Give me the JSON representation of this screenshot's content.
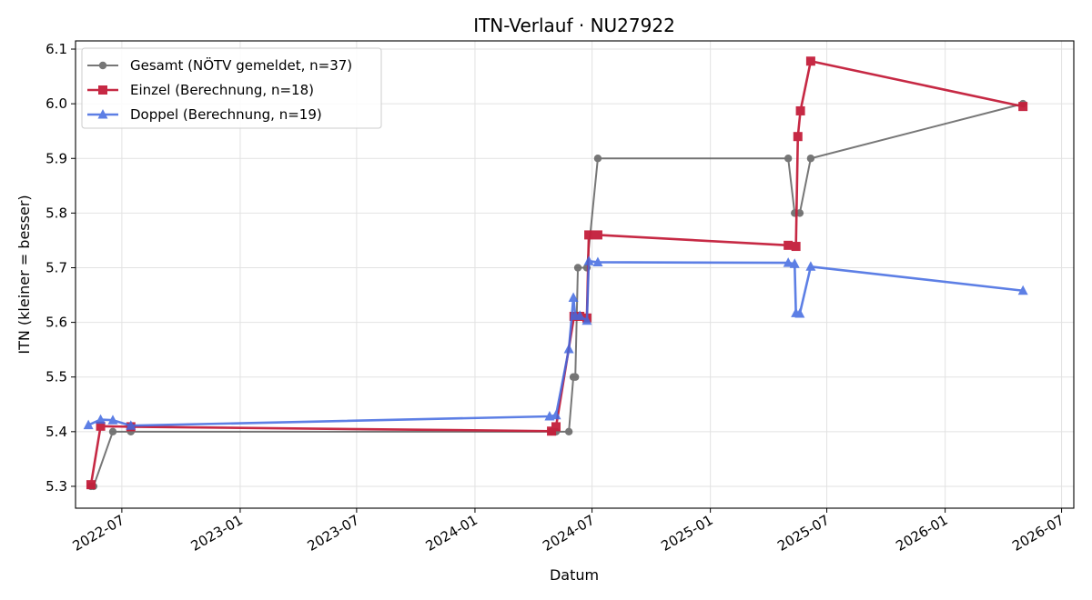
{
  "chart_data": {
    "type": "line",
    "title": "ITN-Verlauf · NU27922",
    "xlabel": "Datum",
    "ylabel": "ITN  (kleiner = besser)",
    "x_range": [
      "2022-04-20",
      "2026-07-20"
    ],
    "ylim": [
      5.26,
      6.115
    ],
    "x_ticks": [
      "2022-07",
      "2023-01",
      "2023-07",
      "2024-01",
      "2024-07",
      "2025-01",
      "2025-07",
      "2026-01",
      "2026-07"
    ],
    "x_tick_dates": [
      "2022-07-01",
      "2023-01-01",
      "2023-07-01",
      "2024-01-01",
      "2024-07-01",
      "2025-01-01",
      "2025-07-01",
      "2026-01-01",
      "2026-07-01"
    ],
    "y_ticks": [
      "5.3",
      "5.4",
      "5.5",
      "5.6",
      "5.7",
      "5.8",
      "5.9",
      "6.0",
      "6.1"
    ],
    "grid": true,
    "legend_position": "top-left",
    "series": [
      {
        "name": "Gesamt (NÖTV gemeldet, n=37)",
        "color": "#444444",
        "marker": "circle",
        "points": [
          [
            "2022-05-14",
            5.3
          ],
          [
            "2022-05-18",
            5.3
          ],
          [
            "2022-06-17",
            5.4
          ],
          [
            "2022-07-15",
            5.4
          ],
          [
            "2024-04-29",
            5.4
          ],
          [
            "2024-05-06",
            5.4
          ],
          [
            "2024-05-26",
            5.4
          ],
          [
            "2024-06-02",
            5.5
          ],
          [
            "2024-06-05",
            5.5
          ],
          [
            "2024-06-09",
            5.7
          ],
          [
            "2024-06-23",
            5.7
          ],
          [
            "2024-07-10",
            5.9
          ],
          [
            "2025-05-02",
            5.9
          ],
          [
            "2025-05-12",
            5.8
          ],
          [
            "2025-05-20",
            5.8
          ],
          [
            "2025-06-06",
            5.9
          ],
          [
            "2026-05-02",
            6.0
          ]
        ]
      },
      {
        "name": "Einzel (Berechnung, n=18)",
        "color": "#c41e3a",
        "marker": "square",
        "points": [
          [
            "2022-05-14",
            5.303
          ],
          [
            "2022-05-29",
            5.41
          ],
          [
            "2022-07-15",
            5.409
          ],
          [
            "2024-04-29",
            5.401
          ],
          [
            "2024-05-06",
            5.409
          ],
          [
            "2024-06-03",
            5.611
          ],
          [
            "2024-06-12",
            5.611
          ],
          [
            "2024-06-23",
            5.608
          ],
          [
            "2024-06-26",
            5.76
          ],
          [
            "2024-07-10",
            5.76
          ],
          [
            "2025-05-02",
            5.741
          ],
          [
            "2025-05-14",
            5.739
          ],
          [
            "2025-05-17",
            5.94
          ],
          [
            "2025-05-21",
            5.987
          ],
          [
            "2025-06-06",
            6.078
          ],
          [
            "2026-05-02",
            5.995
          ]
        ]
      },
      {
        "name": "Doppel (Berechnung, n=19)",
        "color": "#4169e1",
        "marker": "triangle",
        "points": [
          [
            "2022-05-10",
            5.412
          ],
          [
            "2022-05-29",
            5.422
          ],
          [
            "2022-06-17",
            5.421
          ],
          [
            "2022-07-15",
            5.411
          ],
          [
            "2024-04-26",
            5.428
          ],
          [
            "2024-05-06",
            5.43
          ],
          [
            "2024-05-26",
            5.551
          ],
          [
            "2024-06-02",
            5.645
          ],
          [
            "2024-06-05",
            5.612
          ],
          [
            "2024-06-12",
            5.612
          ],
          [
            "2024-06-23",
            5.603
          ],
          [
            "2024-06-26",
            5.712
          ],
          [
            "2024-07-10",
            5.71
          ],
          [
            "2025-05-02",
            5.709
          ],
          [
            "2025-05-12",
            5.707
          ],
          [
            "2025-05-14",
            5.617
          ],
          [
            "2025-05-20",
            5.616
          ],
          [
            "2025-06-06",
            5.702
          ],
          [
            "2026-05-02",
            5.658
          ]
        ]
      }
    ]
  }
}
